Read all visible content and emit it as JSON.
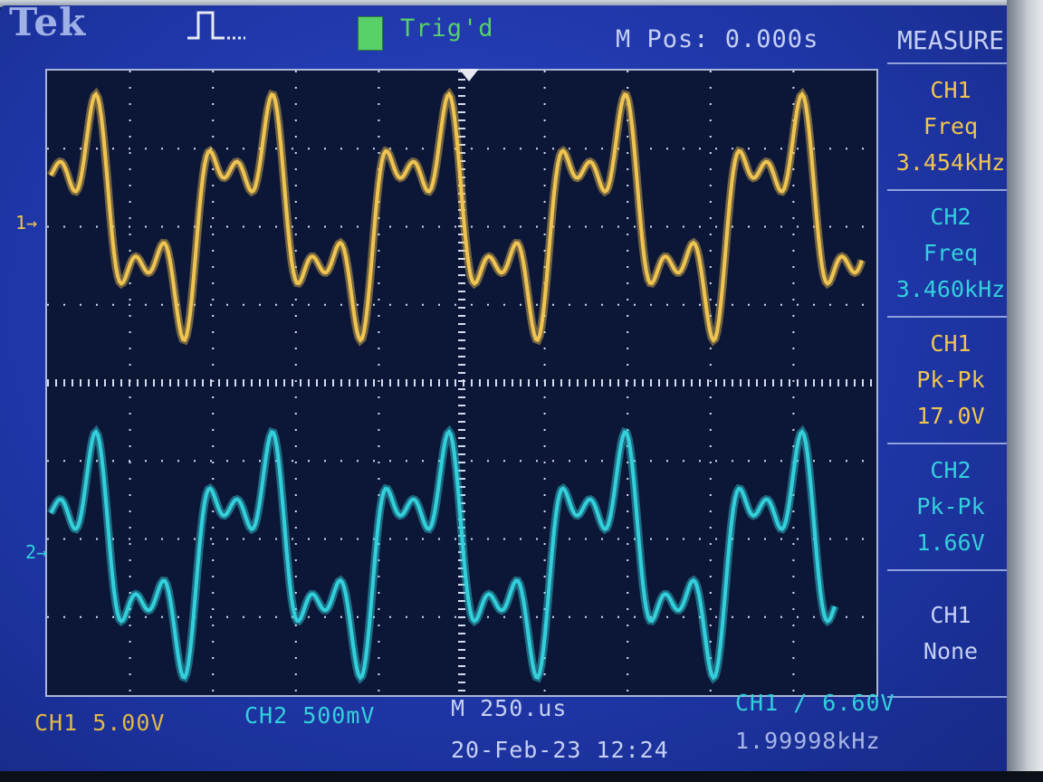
{
  "header": {
    "brand": "Tek",
    "acquire_icon": "pulse-icon",
    "trigger_status": "Trig'd",
    "m_pos": "M Pos: 0.000s"
  },
  "measure": {
    "title": "MEASURE",
    "cells": [
      {
        "channel": "CH1",
        "type": "Freq",
        "value": "3.454kHz",
        "color": "#f0c450"
      },
      {
        "channel": "CH2",
        "type": "Freq",
        "value": "3.460kHz",
        "color": "#33d0dc"
      },
      {
        "channel": "CH1",
        "type": "Pk-Pk",
        "value": "17.0V",
        "color": "#f0c450"
      },
      {
        "channel": "CH2",
        "type": "Pk-Pk",
        "value": "1.66V",
        "color": "#33d0dc"
      },
      {
        "channel": "CH1",
        "type": "None",
        "value": "",
        "color": "#c6d0f4"
      }
    ]
  },
  "markers": {
    "ch1": "1→",
    "ch2": "2→"
  },
  "footer": {
    "ch1_scale": "CH1  5.00V",
    "ch2_scale": "CH2  500mV",
    "timebase": "M 250.us",
    "date": "20-Feb-23 12:24",
    "trigger": "CH1 ∕ 6.60V",
    "trigger_freq": "1.99998kHz"
  },
  "colors": {
    "ch1_trace": "#f0c450",
    "ch2_trace": "#33d0dc",
    "screen_bg": "#0c1738",
    "panel_bg": "#1f36a8",
    "grid": "#d5dbef"
  }
}
